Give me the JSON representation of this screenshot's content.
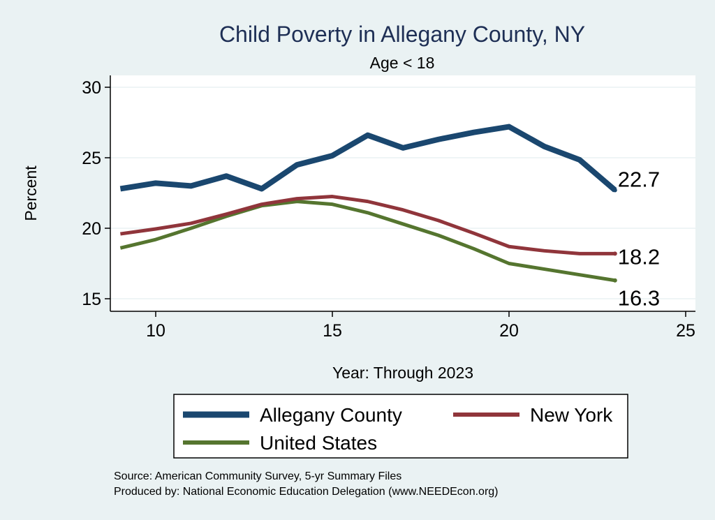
{
  "chart_data": {
    "type": "line",
    "title": "Child Poverty in Allegany County, NY",
    "subtitle": "Age < 18",
    "xlabel": "Year: Through 2023",
    "ylabel": "Percent",
    "xlim": [
      8.7,
      25.3
    ],
    "ylim": [
      14.2,
      30.9
    ],
    "xticks": [
      10,
      15,
      20,
      25
    ],
    "yticks": [
      15,
      20,
      25,
      30
    ],
    "grid": true,
    "legend_position": "bottom",
    "x": [
      9,
      10,
      11,
      12,
      13,
      14,
      15,
      16,
      17,
      18,
      19,
      20,
      21,
      22,
      23
    ],
    "series": [
      {
        "name": "Allegany County",
        "color": "#1a476f",
        "values": [
          22.8,
          23.2,
          23.0,
          23.7,
          22.8,
          24.5,
          25.15,
          26.6,
          25.7,
          26.3,
          26.8,
          27.2,
          25.8,
          24.85,
          22.7
        ],
        "end_label": "22.7"
      },
      {
        "name": "New York",
        "color": "#90353b",
        "values": [
          19.6,
          19.95,
          20.35,
          21.0,
          21.7,
          22.1,
          22.25,
          21.9,
          21.3,
          20.55,
          19.65,
          18.7,
          18.4,
          18.2,
          18.2
        ],
        "end_label": "18.2"
      },
      {
        "name": "United States",
        "color": "#55752f",
        "values": [
          18.6,
          19.2,
          20.0,
          20.85,
          21.6,
          21.9,
          21.7,
          21.1,
          20.3,
          19.5,
          18.55,
          17.5,
          17.1,
          16.7,
          16.3
        ],
        "end_label": "16.3"
      }
    ],
    "notes": [
      "Source: American Community Survey, 5-yr Summary Files",
      "Produced by: National Economic Education Delegation (www.NEEDEcon.org)"
    ]
  }
}
